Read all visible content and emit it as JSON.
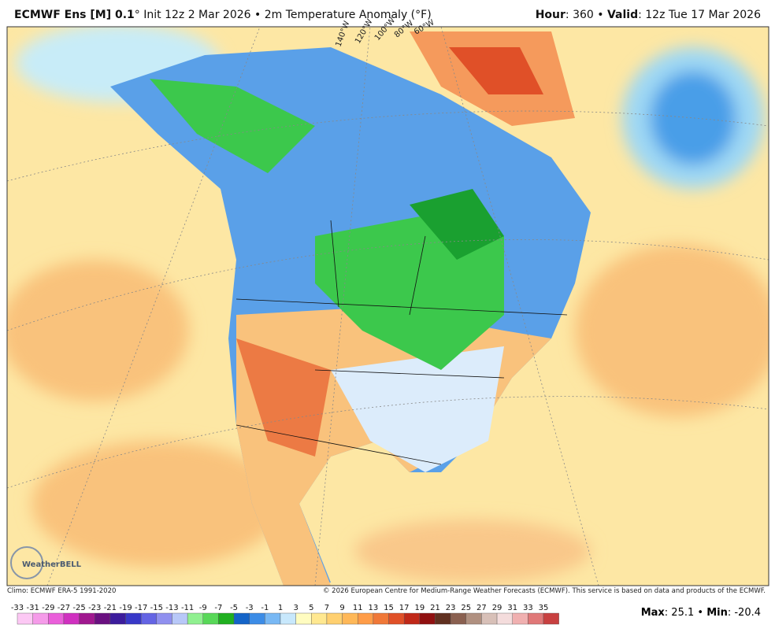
{
  "header": {
    "left": [
      {
        "text": "ECMWF Ens [M] 0.1",
        "bold": true
      },
      {
        "text": "° Init 12z 2 Mar 2026 • 2m Temperature Anomaly (°F)",
        "bold": false
      }
    ],
    "right": [
      {
        "text": "Hour",
        "bold": true
      },
      {
        "text": ": 360 • ",
        "bold": false
      },
      {
        "text": "Valid",
        "bold": true
      },
      {
        "text": ": 12z Tue 17 Mar 2026",
        "bold": false
      }
    ]
  },
  "map": {
    "meridian_labels": [
      "140°W",
      "120°W",
      "100°W",
      "80°W",
      "60°W"
    ],
    "logo": "WeatherBELL"
  },
  "footer": {
    "climo": "Climo: ECMWF ERA-5 1991-2020",
    "copyright": "© 2026 European Centre for Medium-Range Weather Forecasts (ECMWF). This service is based on data and products of the ECMWF."
  },
  "colorbar": {
    "ticks": [
      -33,
      -31,
      -29,
      -27,
      -25,
      -23,
      -21,
      -19,
      -17,
      -15,
      -13,
      -11,
      -9,
      -7,
      -5,
      -3,
      -1,
      1,
      3,
      5,
      7,
      9,
      11,
      13,
      15,
      17,
      19,
      21,
      23,
      25,
      27,
      29,
      31,
      33,
      35
    ],
    "colors": [
      "#fcc8f4",
      "#f59be9",
      "#ea5fda",
      "#d030c0",
      "#a0188f",
      "#6a1080",
      "#3c1c9c",
      "#3838c8",
      "#6464e4",
      "#9090ef",
      "#b8c8f8",
      "#90f090",
      "#58d858",
      "#20b020",
      "#1464c8",
      "#3c8ce6",
      "#78b8f4",
      "#c8e8fc",
      "#fffcc0",
      "#ffe890",
      "#ffd070",
      "#ffb858",
      "#ff9c48",
      "#f07838",
      "#e05028",
      "#c02818",
      "#901010",
      "#603020",
      "#8a6050",
      "#b09080",
      "#d8c0b8",
      "#f4dcdc",
      "#f0b0b0",
      "#e07878",
      "#c84040"
    ]
  },
  "stats": [
    {
      "text": "Max",
      "bold": true
    },
    {
      "text": ": 25.1 • ",
      "bold": false
    },
    {
      "text": "Min",
      "bold": true
    },
    {
      "text": ": -20.4",
      "bold": false
    }
  ]
}
